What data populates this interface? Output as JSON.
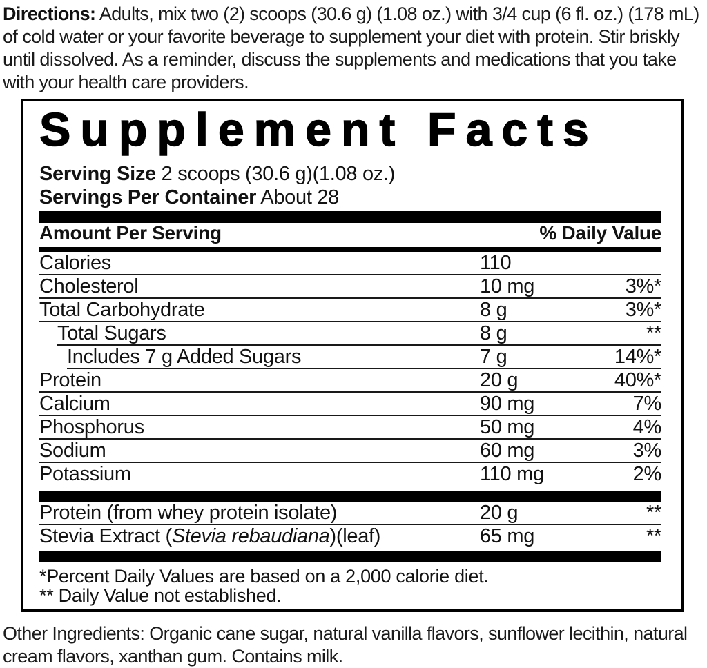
{
  "colors": {
    "ink": "#000000",
    "text": "#1b1b1b"
  },
  "directions": {
    "label": "Directions:",
    "text": " Adults, mix two (2) scoops (30.6 g) (1.08 oz.) with 3/4 cup (6 fl. oz.) (178 mL) of cold water or your favorite beverage to supplement your diet with protein. Stir briskly until dissolved.  As a reminder, discuss the supplements and medications that you take with your health care providers."
  },
  "facts": {
    "title": "Supplement Facts",
    "serving_size_label": "Serving Size",
    "serving_size_value": "2 scoops (30.6 g)(1.08 oz.)",
    "servings_per_container_label": "Servings Per Container",
    "servings_per_container_value": "About 28",
    "header": {
      "left": "Amount Per Serving",
      "right": "% Daily Value"
    },
    "rows": [
      {
        "name": "Calories",
        "amount": "110",
        "dv": ""
      },
      {
        "name": "Cholesterol",
        "amount": "10 mg",
        "dv": "3%*"
      },
      {
        "name": "Total Carbohydrate",
        "amount": "8 g",
        "dv": "3%*"
      },
      {
        "name": "Total Sugars",
        "amount": "8 g",
        "dv": "**"
      },
      {
        "name": "Includes 7 g Added Sugars",
        "amount": "7 g",
        "dv": "14%*"
      },
      {
        "name": "Protein",
        "amount": "20 g",
        "dv": "40%*"
      },
      {
        "name": "Calcium",
        "amount": "90 mg",
        "dv": "7%"
      },
      {
        "name": "Phosphorus",
        "amount": "50 mg",
        "dv": "4%"
      },
      {
        "name": "Sodium",
        "amount": "60 mg",
        "dv": "3%"
      },
      {
        "name": "Potassium",
        "amount": "110 mg",
        "dv": "2%"
      }
    ],
    "supplement_rows": [
      {
        "name": "Protein (from whey protein isolate)",
        "amount": "20 g",
        "dv": "**"
      },
      {
        "name_pre": "Stevia Extract (",
        "name_italic": "Stevia rebaudiana",
        "name_post": ")(leaf)",
        "amount": "65 mg",
        "dv": "**"
      }
    ],
    "footnotes": [
      "*Percent Daily Values are based on a 2,000 calorie diet.",
      "** Daily Value not established."
    ]
  },
  "other_ingredients": {
    "text": "Other Ingredients: Organic cane sugar, natural vanilla flavors, sunflower lecithin, natural cream flavors, xanthan gum. Contains milk."
  }
}
